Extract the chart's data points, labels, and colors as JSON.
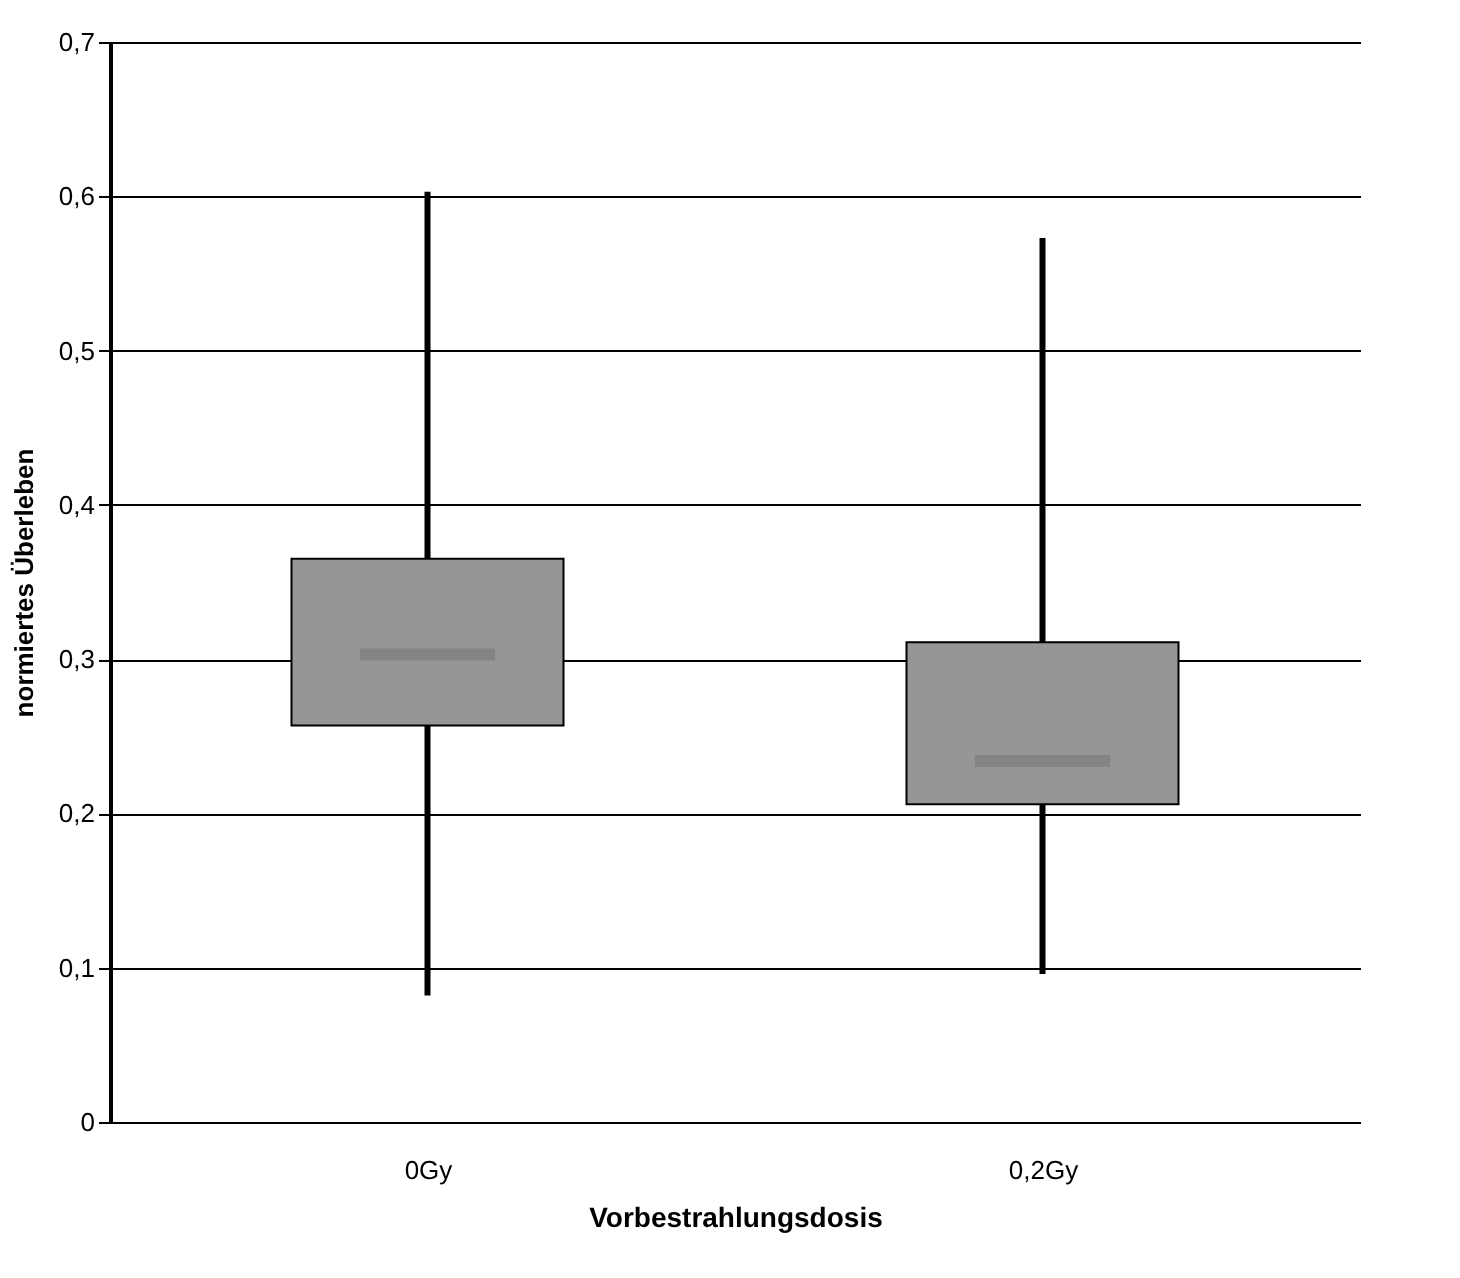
{
  "chart_data": {
    "type": "box",
    "xlabel": "Vorbestrahlungsdosis",
    "ylabel": "normiertes Überleben",
    "categories": [
      "0Gy",
      "0,2Gy"
    ],
    "boxes": [
      {
        "low": 0.082,
        "q1": 0.257,
        "median": 0.303,
        "q3": 0.365,
        "high": 0.603
      },
      {
        "low": 0.096,
        "q1": 0.206,
        "median": 0.234,
        "q3": 0.311,
        "high": 0.573
      }
    ],
    "color": "#969696",
    "ylim": [
      0,
      0.7
    ],
    "yticks": [
      {
        "value": 0,
        "label": "0"
      },
      {
        "value": 0.1,
        "label": "0,1"
      },
      {
        "value": 0.2,
        "label": "0,2"
      },
      {
        "value": 0.3,
        "label": "0,3"
      },
      {
        "value": 0.4,
        "label": "0,4"
      },
      {
        "value": 0.5,
        "label": "0,5"
      },
      {
        "value": 0.6,
        "label": "0,6"
      },
      {
        "value": 0.7,
        "label": "0,7"
      }
    ],
    "grid": "y"
  }
}
